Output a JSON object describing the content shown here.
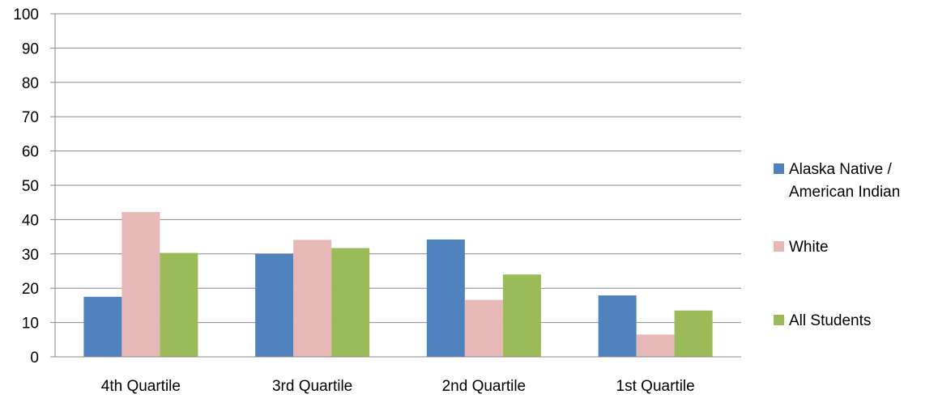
{
  "chart_data": {
    "type": "bar",
    "categories": [
      "4th Quartile",
      "3rd Quartile",
      "2nd Quartile",
      "1st Quartile"
    ],
    "series": [
      {
        "name": "Alaska Native / American Indian",
        "color": "#4f81bd",
        "values": [
          17.5,
          30,
          34.2,
          17.9
        ]
      },
      {
        "name": "White",
        "color": "#e6b9b8",
        "values": [
          42.2,
          34.1,
          16.6,
          6.5
        ]
      },
      {
        "name": "All Students",
        "color": "#9bbb59",
        "values": [
          30.3,
          31.7,
          24,
          13.5
        ]
      }
    ],
    "ylim": [
      0,
      100
    ],
    "yticks": [
      0,
      10,
      20,
      30,
      40,
      50,
      60,
      70,
      80,
      90,
      100
    ],
    "grid": true,
    "legend_position": "right"
  },
  "legend": {
    "items": [
      {
        "label": "Alaska Native / American Indian",
        "color": "#4f81bd"
      },
      {
        "label": "White",
        "color": "#e6b9b8"
      },
      {
        "label": "All Students",
        "color": "#9bbb59"
      }
    ]
  }
}
